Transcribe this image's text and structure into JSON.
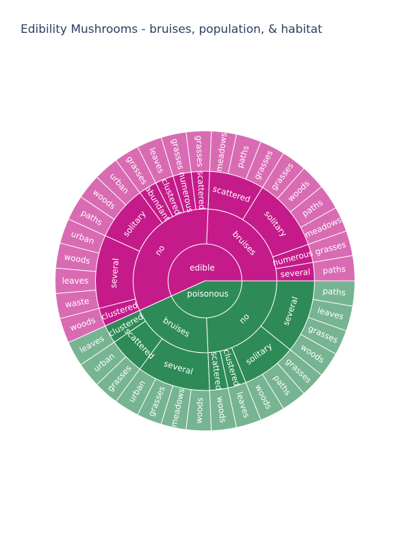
{
  "chart_data": {
    "type": "sunburst",
    "title": "Edibility Mushrooms - bruises, population, & habitat",
    "colors": {
      "edible": "#c51b8a",
      "poisonous": "#2e8b57"
    },
    "levels": [
      "edibility",
      "bruises",
      "population",
      "habitat"
    ],
    "tree": [
      {
        "label": "edible",
        "children": [
          {
            "label": "bruises",
            "children": [
              {
                "label": "several",
                "children": [
                  {
                    "label": "paths",
                    "value": 1
                  }
                ]
              },
              {
                "label": "numerous",
                "children": [
                  {
                    "label": "grasses",
                    "value": 1
                  }
                ]
              },
              {
                "label": "solitary",
                "children": [
                  {
                    "label": "meadows",
                    "value": 1
                  },
                  {
                    "label": "paths",
                    "value": 1
                  },
                  {
                    "label": "woods",
                    "value": 1
                  },
                  {
                    "label": "grasses",
                    "value": 1
                  }
                ]
              },
              {
                "label": "scattered",
                "children": [
                  {
                    "label": "grasses",
                    "value": 1
                  },
                  {
                    "label": "paths",
                    "value": 1
                  },
                  {
                    "label": "meadows",
                    "value": 1
                  }
                ]
              }
            ]
          },
          {
            "label": "no",
            "children": [
              {
                "label": "scattered",
                "children": [
                  {
                    "label": "grasses",
                    "value": 1
                  }
                ]
              },
              {
                "label": "numerous",
                "children": [
                  {
                    "label": "grasses",
                    "value": 1
                  }
                ]
              },
              {
                "label": "clustered",
                "children": [
                  {
                    "label": "leaves",
                    "value": 1
                  }
                ]
              },
              {
                "label": "abundant",
                "children": [
                  {
                    "label": "grasses",
                    "value": 1
                  }
                ]
              },
              {
                "label": "solitary",
                "children": [
                  {
                    "label": "urban",
                    "value": 1
                  },
                  {
                    "label": "woods",
                    "value": 1
                  },
                  {
                    "label": "paths",
                    "value": 1
                  }
                ]
              },
              {
                "label": "several",
                "children": [
                  {
                    "label": "urban",
                    "value": 1
                  },
                  {
                    "label": "woods",
                    "value": 1
                  },
                  {
                    "label": "leaves",
                    "value": 1
                  },
                  {
                    "label": "waste",
                    "value": 1
                  }
                ]
              },
              {
                "label": "clustered",
                "children": [
                  {
                    "label": "woods",
                    "value": 1
                  }
                ]
              }
            ]
          }
        ]
      },
      {
        "label": "poisonous",
        "children": [
          {
            "label": "bruises",
            "children": [
              {
                "label": "clustered",
                "children": [
                  {
                    "label": "leaves",
                    "value": 1
                  }
                ]
              },
              {
                "label": "scattered",
                "children": [
                  {
                    "label": "urban",
                    "value": 1
                  },
                  {
                    "label": "grasses",
                    "value": 1
                  }
                ]
              },
              {
                "label": "several",
                "children": [
                  {
                    "label": "urban",
                    "value": 1
                  },
                  {
                    "label": "grasses",
                    "value": 1
                  },
                  {
                    "label": "meadows",
                    "value": 1
                  },
                  {
                    "label": "woods",
                    "value": 1
                  }
                ]
              }
            ]
          },
          {
            "label": "no",
            "children": [
              {
                "label": "scattered",
                "children": [
                  {
                    "label": "woods",
                    "value": 1
                  }
                ]
              },
              {
                "label": "clustered",
                "children": [
                  {
                    "label": "leaves",
                    "value": 1
                  }
                ]
              },
              {
                "label": "solitary",
                "children": [
                  {
                    "label": "woods",
                    "value": 1
                  },
                  {
                    "label": "paths",
                    "value": 1
                  },
                  {
                    "label": "grasses",
                    "value": 1
                  }
                ]
              },
              {
                "label": "several",
                "children": [
                  {
                    "label": "woods",
                    "value": 1
                  },
                  {
                    "label": "grasses",
                    "value": 1
                  },
                  {
                    "label": "leaves",
                    "value": 1
                  },
                  {
                    "label": "paths",
                    "value": 1
                  }
                ]
              }
            ]
          }
        ]
      }
    ]
  }
}
